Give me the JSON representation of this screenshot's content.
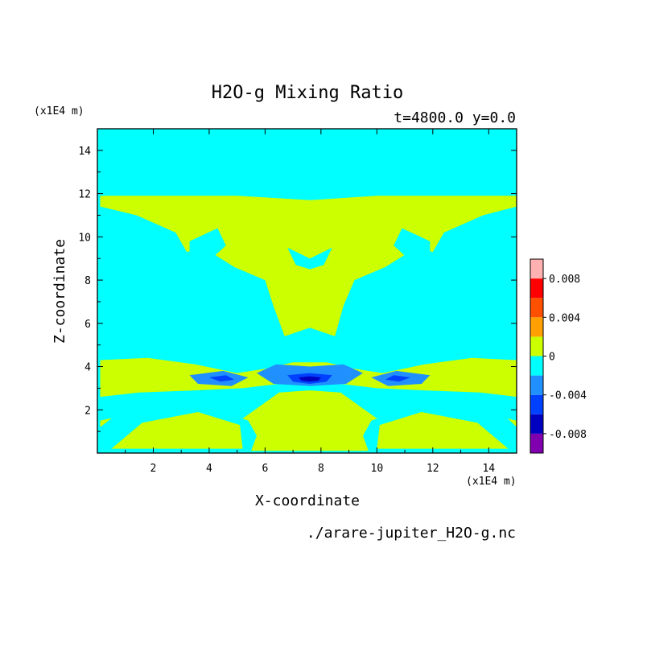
{
  "chart_data": {
    "type": "heatmap",
    "title": "H2O-g Mixing Ratio",
    "subtitle": "t=4800.0 y=0.0",
    "xlabel": "X-coordinate",
    "ylabel": "Z-coordinate",
    "x_unit": "(x1E4 m)",
    "y_unit": "(x1E4 m)",
    "xlim": [
      0,
      15
    ],
    "ylim": [
      0,
      15
    ],
    "xticks": [
      2,
      4,
      6,
      8,
      10,
      12,
      14
    ],
    "yticks": [
      2,
      4,
      6,
      8,
      10,
      12,
      14
    ],
    "footer": "./arare-jupiter_H2O-g.nc",
    "colorbar": {
      "levels": [
        -0.01,
        -0.008,
        -0.006,
        -0.004,
        -0.002,
        0,
        0.002,
        0.004,
        0.006,
        0.008,
        0.01
      ],
      "labels": [
        "0.008",
        "0.004",
        "0",
        "-0.004",
        "-0.008"
      ],
      "label_values": [
        0.008,
        0.004,
        0,
        -0.004,
        -0.008
      ],
      "colors": [
        "#8000b0",
        "#0000c0",
        "#0040ff",
        "#2090ff",
        "#00ffff",
        "#ccff00",
        "#ffa000",
        "#ff5000",
        "#ff0000",
        "#ffb0b0"
      ]
    },
    "background_level": "#00ffff",
    "regions": [
      {
        "level": "#ccff00",
        "points": [
          [
            0.1,
            11.9
          ],
          [
            5,
            11.9
          ],
          [
            7.6,
            11.7
          ],
          [
            10,
            11.9
          ],
          [
            15,
            11.9
          ],
          [
            15,
            11.4
          ],
          [
            13.8,
            11
          ],
          [
            12.4,
            10.2
          ],
          [
            12,
            9.3
          ],
          [
            11.4,
            9.5
          ],
          [
            10.3,
            8.6
          ],
          [
            9.2,
            8
          ],
          [
            8.8,
            6.8
          ],
          [
            8.5,
            5.4
          ],
          [
            7.6,
            5.8
          ],
          [
            6.7,
            5.4
          ],
          [
            6.3,
            6.8
          ],
          [
            6,
            8
          ],
          [
            4.9,
            8.6
          ],
          [
            3.8,
            9.5
          ],
          [
            3.2,
            9.3
          ],
          [
            2.8,
            10.2
          ],
          [
            1.4,
            11
          ],
          [
            0.1,
            11.4
          ]
        ]
      },
      {
        "level": "#00ffff",
        "points": [
          [
            3.3,
            9.8
          ],
          [
            4.3,
            10.4
          ],
          [
            4.6,
            9.6
          ],
          [
            4.0,
            8.9
          ],
          [
            3.3,
            9.1
          ]
        ]
      },
      {
        "level": "#00ffff",
        "points": [
          [
            10.6,
            9.6
          ],
          [
            10.9,
            10.4
          ],
          [
            11.9,
            9.8
          ],
          [
            11.9,
            9.1
          ],
          [
            11.2,
            8.9
          ]
        ]
      },
      {
        "level": "#00ffff",
        "points": [
          [
            6.8,
            9.5
          ],
          [
            7.6,
            9
          ],
          [
            8.4,
            9.5
          ],
          [
            8.1,
            8.7
          ],
          [
            7.6,
            8.5
          ],
          [
            7.1,
            8.7
          ]
        ]
      },
      {
        "level": "#ccff00",
        "points": [
          [
            0.1,
            4.3
          ],
          [
            1.8,
            4.4
          ],
          [
            3.5,
            4.1
          ],
          [
            5,
            3.7
          ],
          [
            6,
            3.9
          ],
          [
            7,
            4.2
          ],
          [
            8.2,
            4.2
          ],
          [
            9.2,
            3.9
          ],
          [
            10.2,
            3.7
          ],
          [
            11.7,
            4.1
          ],
          [
            13.4,
            4.4
          ],
          [
            15,
            4.3
          ],
          [
            15,
            0.1
          ],
          [
            0.1,
            0.1
          ]
        ]
      },
      {
        "level": "#00ffff",
        "points": [
          [
            0.1,
            2.6
          ],
          [
            1.5,
            2.8
          ],
          [
            3.5,
            2.9
          ],
          [
            5.2,
            3
          ],
          [
            6.5,
            3.2
          ],
          [
            7.6,
            3.3
          ],
          [
            8.7,
            3.2
          ],
          [
            10,
            3
          ],
          [
            11.7,
            2.9
          ],
          [
            13.7,
            2.8
          ],
          [
            15,
            2.6
          ],
          [
            15,
            1.5
          ],
          [
            14,
            1.8
          ],
          [
            12,
            2
          ],
          [
            10,
            1.6
          ],
          [
            8.7,
            2.8
          ],
          [
            7.6,
            2.9
          ],
          [
            6.5,
            2.8
          ],
          [
            5.2,
            1.6
          ],
          [
            3.2,
            2
          ],
          [
            1.2,
            1.8
          ],
          [
            0.1,
            1.5
          ]
        ]
      },
      {
        "level": "#00ffff",
        "points": [
          [
            0.1,
            1.2
          ],
          [
            0.6,
            1.7
          ],
          [
            2.2,
            2
          ],
          [
            3.8,
            2.2
          ],
          [
            5.4,
            1.5
          ],
          [
            5.7,
            0.8
          ],
          [
            5.5,
            0.1
          ],
          [
            0.1,
            0.1
          ]
        ]
      },
      {
        "level": "#00ffff",
        "points": [
          [
            15,
            1.2
          ],
          [
            14.6,
            1.7
          ],
          [
            13,
            2
          ],
          [
            11.4,
            2.2
          ],
          [
            9.8,
            1.5
          ],
          [
            9.5,
            0.8
          ],
          [
            9.7,
            0.1
          ],
          [
            15,
            0.1
          ]
        ]
      },
      {
        "level": "#ccff00",
        "points": [
          [
            0.5,
            0.2
          ],
          [
            1.6,
            1.4
          ],
          [
            3.6,
            1.9
          ],
          [
            5.1,
            1.3
          ],
          [
            5.2,
            0.2
          ]
        ]
      },
      {
        "level": "#ccff00",
        "points": [
          [
            14.7,
            0.2
          ],
          [
            13.6,
            1.4
          ],
          [
            11.6,
            1.9
          ],
          [
            10.1,
            1.3
          ],
          [
            10,
            0.2
          ]
        ]
      },
      {
        "level": "#2090ff",
        "points": [
          [
            3.3,
            3.6
          ],
          [
            4.5,
            3.8
          ],
          [
            5.4,
            3.5
          ],
          [
            4.8,
            3.1
          ],
          [
            3.6,
            3.2
          ]
        ]
      },
      {
        "level": "#2090ff",
        "points": [
          [
            9.8,
            3.5
          ],
          [
            10.7,
            3.8
          ],
          [
            11.9,
            3.6
          ],
          [
            11.6,
            3.2
          ],
          [
            10.4,
            3.1
          ]
        ]
      },
      {
        "level": "#2090ff",
        "points": [
          [
            5.7,
            3.7
          ],
          [
            6.4,
            4.1
          ],
          [
            7.6,
            4.0
          ],
          [
            8.8,
            4.1
          ],
          [
            9.5,
            3.7
          ],
          [
            8.9,
            3.2
          ],
          [
            7.6,
            3.1
          ],
          [
            6.3,
            3.2
          ]
        ]
      },
      {
        "level": "#0040ff",
        "points": [
          [
            4.0,
            3.5
          ],
          [
            4.6,
            3.6
          ],
          [
            4.9,
            3.4
          ],
          [
            4.4,
            3.3
          ]
        ]
      },
      {
        "level": "#0040ff",
        "points": [
          [
            10.3,
            3.4
          ],
          [
            10.6,
            3.6
          ],
          [
            11.2,
            3.5
          ],
          [
            10.8,
            3.3
          ]
        ]
      },
      {
        "level": "#0040ff",
        "points": [
          [
            6.8,
            3.6
          ],
          [
            7.6,
            3.7
          ],
          [
            8.4,
            3.6
          ],
          [
            8.2,
            3.3
          ],
          [
            7.6,
            3.2
          ],
          [
            7.0,
            3.3
          ]
        ]
      },
      {
        "level": "#0000c0",
        "points": [
          [
            7.2,
            3.5
          ],
          [
            7.6,
            3.55
          ],
          [
            8,
            3.5
          ],
          [
            7.9,
            3.35
          ],
          [
            7.6,
            3.3
          ],
          [
            7.3,
            3.35
          ]
        ]
      }
    ]
  }
}
